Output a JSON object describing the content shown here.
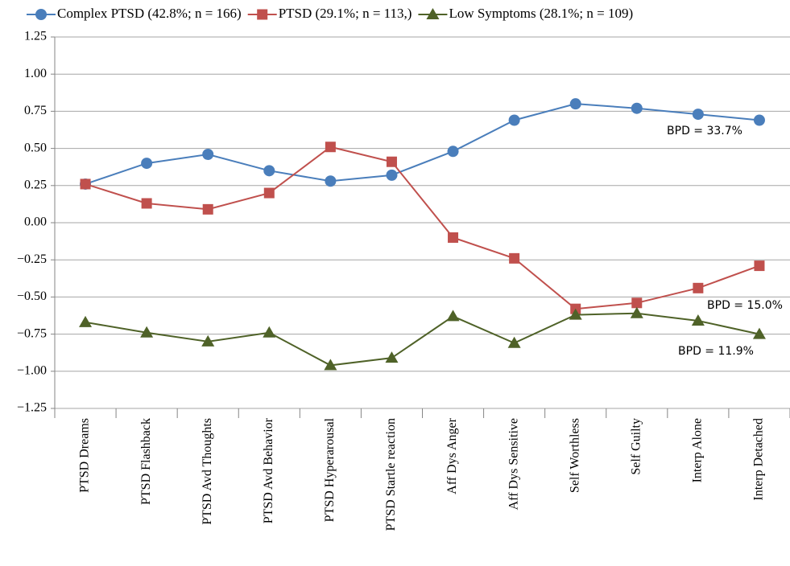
{
  "chart_data": {
    "type": "line",
    "categories": [
      "PTSD Dreams",
      "PTSD Flashback",
      "PTSD Avd Thoughts",
      "PTSD Avd Behavior",
      "PTSD Hyperarousal",
      "PTSD Startle reaction",
      "Aff Dys Anger",
      "Aff Dys Sensitive",
      "Self Worthless",
      "Self Guilty",
      "Interp Alone",
      "Interp Detached"
    ],
    "series": [
      {
        "name": "Complex PTSD (42.8%; n = 166)",
        "color": "#4a7ebb",
        "marker": "circle",
        "values": [
          0.26,
          0.4,
          0.46,
          0.35,
          0.28,
          0.32,
          0.48,
          0.69,
          0.8,
          0.77,
          0.73,
          0.69
        ]
      },
      {
        "name": "PTSD (29.1%; n = 113,)",
        "color": "#c0504d",
        "marker": "square",
        "values": [
          0.26,
          0.13,
          0.09,
          0.2,
          0.51,
          0.41,
          -0.1,
          -0.24,
          -0.58,
          -0.54,
          -0.44,
          -0.29
        ]
      },
      {
        "name": "Low Symptoms (28.1%; n = 109)",
        "color": "#4f6228",
        "marker": "triangle",
        "values": [
          -0.67,
          -0.74,
          -0.8,
          -0.74,
          -0.96,
          -0.91,
          -0.63,
          -0.81,
          -0.62,
          -0.61,
          -0.66,
          -0.75
        ]
      }
    ],
    "annotations": [
      "BPD = 33.7%",
      "BPD = 15.0%",
      "BPD = 11.9%"
    ],
    "ylim": [
      -1.25,
      1.25
    ],
    "yticks": [
      {
        "value": -1.25,
        "label": "−1.25"
      },
      {
        "value": -1,
        "label": "−1.00"
      },
      {
        "value": -0.75,
        "label": "−0.75"
      },
      {
        "value": -0.5,
        "label": "−0.50"
      },
      {
        "value": -0.25,
        "label": "−0.25"
      },
      {
        "value": 0,
        "label": "0.00"
      },
      {
        "value": 0.25,
        "label": "0.25"
      },
      {
        "value": 0.5,
        "label": "0.50"
      },
      {
        "value": 0.75,
        "label": "0.75"
      },
      {
        "value": 1,
        "label": "1.00"
      },
      {
        "value": 1.25,
        "label": "1.25"
      }
    ],
    "grid": true,
    "legend": "top"
  }
}
